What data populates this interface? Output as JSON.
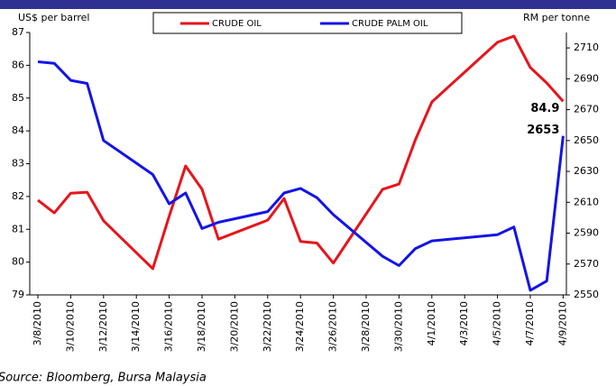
{
  "chart_data": {
    "type": "line",
    "y_label": "US$ per barrel",
    "y2_label": "RM per tonne",
    "source": "Source: Bloomberg, Bursa Malaysia",
    "x": [
      "3/8/2010",
      "3/9/2010",
      "3/10/2010",
      "3/11/2010",
      "3/12/2010",
      "3/15/2010",
      "3/16/2010",
      "3/17/2010",
      "3/18/2010",
      "3/19/2010",
      "3/22/2010",
      "3/23/2010",
      "3/24/2010",
      "3/25/2010",
      "3/26/2010",
      "3/29/2010",
      "3/30/2010",
      "3/31/2010",
      "4/1/2010",
      "4/5/2010",
      "4/6/2010",
      "4/7/2010",
      "4/8/2010",
      "4/9/2010"
    ],
    "series": [
      {
        "name": "CRUDE OIL",
        "color": "#e8141b",
        "axis": "y",
        "label_last": true,
        "values": [
          81.89,
          81.5,
          82.1,
          82.13,
          81.26,
          79.8,
          81.4,
          82.93,
          82.22,
          80.7,
          81.28,
          81.94,
          80.63,
          80.58,
          79.97,
          82.22,
          82.38,
          83.73,
          84.88,
          86.7,
          86.89,
          85.93,
          85.46,
          84.9
        ]
      },
      {
        "name": "CRUDE PALM OIL",
        "color": "#1414e8",
        "axis": "y2",
        "label_last": true,
        "values": [
          2701,
          2700,
          2689,
          2687,
          2650,
          2628,
          2609,
          2616,
          2593,
          2597,
          2604,
          2616,
          2619,
          2613,
          2602,
          2575,
          2569,
          2580,
          2585,
          2589,
          2594,
          2553,
          2559,
          2653
        ]
      }
    ],
    "xticks": [
      "3/8/2010",
      "3/10/2010",
      "3/12/2010",
      "3/14/2010",
      "3/16/2010",
      "3/18/2010",
      "3/20/2010",
      "3/22/2010",
      "3/24/2010",
      "3/26/2010",
      "3/28/2010",
      "3/30/2010",
      "4/1/2010",
      "4/3/2010",
      "4/5/2010",
      "4/7/2010",
      "4/9/2010"
    ],
    "ylim": [
      79,
      87
    ],
    "yticks": [
      79,
      80,
      81,
      82,
      83,
      84,
      85,
      86,
      87
    ],
    "y2lim": [
      2550,
      2720
    ],
    "y2ticks": [
      2550,
      2570,
      2590,
      2610,
      2630,
      2650,
      2670,
      2690,
      2710
    ]
  }
}
